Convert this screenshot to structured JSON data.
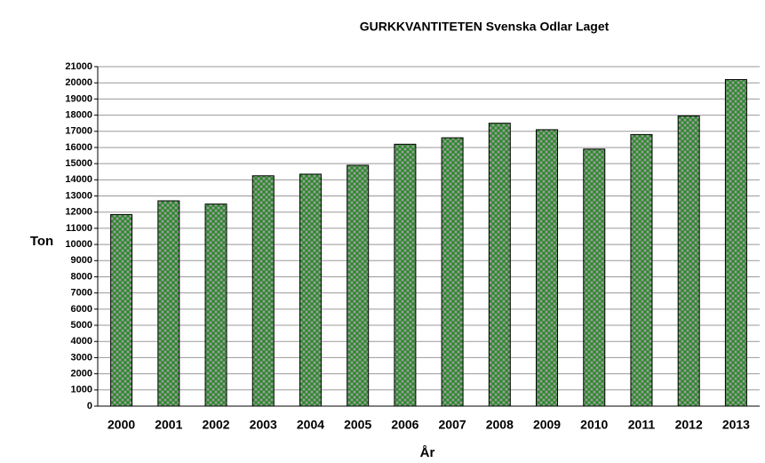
{
  "chart_data": {
    "type": "bar",
    "title": "GURKKVANTITETEN  Svenska Odlar Laget",
    "y_label": "Ton",
    "x_label": "År",
    "categories": [
      "2000",
      "2001",
      "2002",
      "2003",
      "2004",
      "2005",
      "2006",
      "2007",
      "2008",
      "2009",
      "2010",
      "2011",
      "2012",
      "2013"
    ],
    "values": [
      11850,
      12700,
      12500,
      14250,
      14350,
      14900,
      16200,
      16600,
      17500,
      17100,
      15900,
      16800,
      17950,
      20200
    ],
    "color": "#1f8a1f",
    "ylim": [
      0,
      21000
    ],
    "yticks": [
      0,
      1000,
      2000,
      3000,
      4000,
      5000,
      6000,
      7000,
      8000,
      9000,
      10000,
      11000,
      12000,
      13000,
      14000,
      15000,
      16000,
      17000,
      18000,
      19000,
      20000,
      21000
    ],
    "grid": true
  }
}
